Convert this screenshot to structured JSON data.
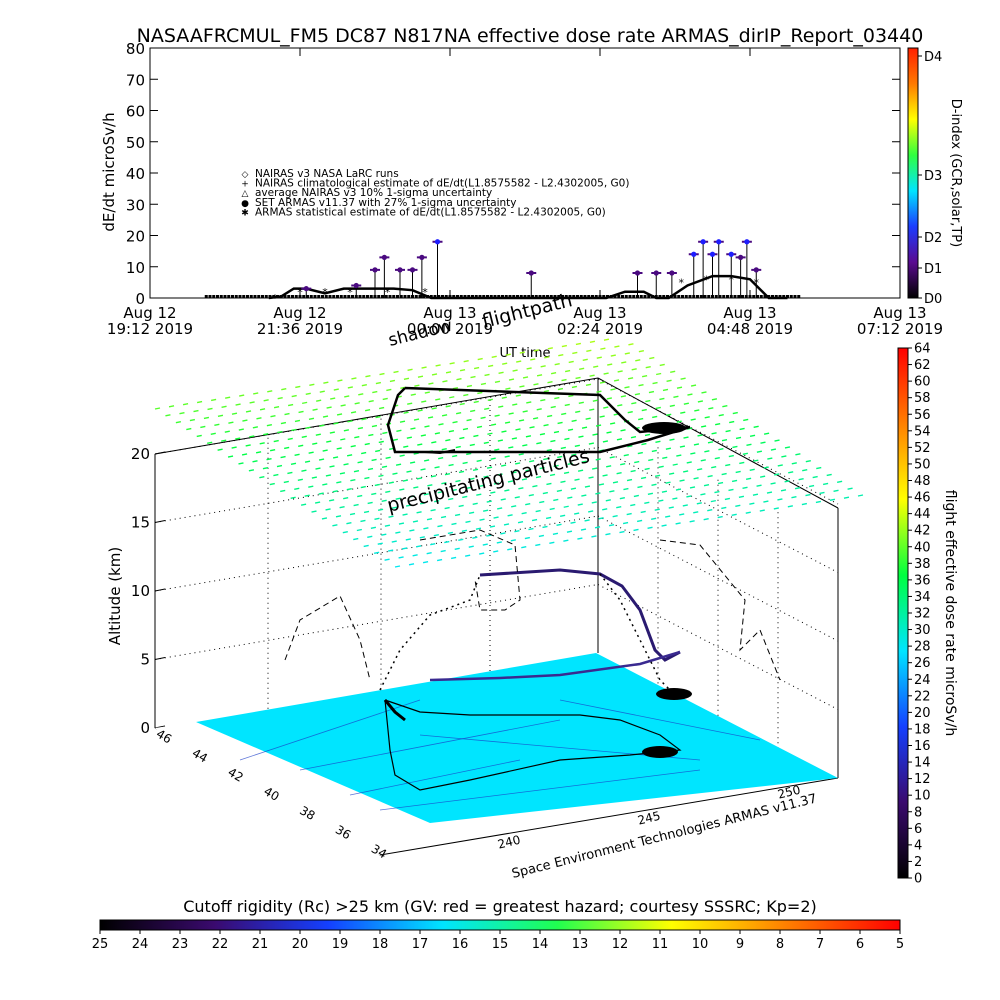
{
  "title": "NASAAFRCMUL_FM5 DC87 N817NA effective dose rate ARMAS_dirIP_Report_03440",
  "top_plot": {
    "ylabel": "dE/dt microSv/h",
    "xlabel": "UT time",
    "y_ticks": [
      "0",
      "10",
      "20",
      "30",
      "40",
      "50",
      "60",
      "70",
      "80"
    ],
    "x_ticks": [
      {
        "date": "Aug 12",
        "time": "19:12 2019"
      },
      {
        "date": "Aug 12",
        "time": "21:36 2019"
      },
      {
        "date": "Aug 13",
        "time": "00:00 2019"
      },
      {
        "date": "Aug 13",
        "time": "02:24 2019"
      },
      {
        "date": "Aug 13",
        "time": "04:48 2019"
      },
      {
        "date": "Aug 13",
        "time": "07:12 2019"
      }
    ],
    "legend": [
      {
        "symbol": "◇",
        "text": "NAIRAS v3 NASA LaRC runs"
      },
      {
        "symbol": "+",
        "text": "NAIRAS climatological estimate of dE/dt(L1.8575582 - L2.4302005, G0)"
      },
      {
        "symbol": "△",
        "text": "average NAIRAS v3 10% 1-sigma uncertainty"
      },
      {
        "symbol": "●",
        "text": "SET ARMAS v11.37 with 27% 1-sigma uncertainty"
      },
      {
        "symbol": "✱",
        "text": "ARMAS statistical estimate of dE/dt(L1.8575582 - L2.4302005, G0)"
      }
    ],
    "d_index_label": "D-index (GCR,solar,TP)",
    "d_index_ticks": [
      "D0",
      "D1",
      "D2",
      "D3",
      "D4"
    ]
  },
  "overlay_labels": {
    "flightpath": "flightpath",
    "shadow": "shadow",
    "precipitating": "precipitating particles"
  },
  "perspective_plot": {
    "zlabel": "Altitude (km)",
    "z_ticks": [
      "0",
      "5",
      "10",
      "15",
      "20"
    ],
    "lat_ticks": [
      "46",
      "44",
      "42",
      "40",
      "38",
      "36",
      "34"
    ],
    "lon_ticks": [
      "240",
      "245",
      "250"
    ],
    "credit": "Space Environment Technologies ARMAS v11.37"
  },
  "dose_colorbar": {
    "label": "flight effective dose rate microSv/h",
    "ticks": [
      "0",
      "2",
      "4",
      "6",
      "8",
      "10",
      "12",
      "14",
      "16",
      "18",
      "20",
      "22",
      "24",
      "26",
      "28",
      "30",
      "32",
      "34",
      "36",
      "38",
      "40",
      "42",
      "44",
      "46",
      "48",
      "50",
      "52",
      "54",
      "56",
      "58",
      "60",
      "62",
      "64"
    ]
  },
  "cutoff_colorbar": {
    "label": "Cutoff rigidity (Rc) >25 km (GV: red = greatest hazard; courtesy SSSRC; Kp=2)",
    "ticks": [
      "25",
      "24",
      "23",
      "22",
      "21",
      "20",
      "19",
      "18",
      "17",
      "16",
      "15",
      "14",
      "13",
      "12",
      "11",
      "10",
      "9",
      "8",
      "7",
      "6",
      "5"
    ]
  },
  "colors": {
    "ground": "#00e5ff",
    "arrow_stops": [
      "#000000",
      "#3a0a6e",
      "#1440ff",
      "#00e5ff",
      "#00ff40",
      "#ffff00",
      "#ff8000",
      "#ff0000"
    ],
    "d_index_stops": [
      "#000000",
      "#5a0a90",
      "#1c3cff",
      "#00e5ff",
      "#30ff40",
      "#ffff00",
      "#ff7a00",
      "#ff2000"
    ],
    "cutoff_stops": [
      "#000000",
      "#3a0a6e",
      "#1440ff",
      "#00e5ff",
      "#20ff50",
      "#ffff00",
      "#ff8000",
      "#ff0000"
    ]
  },
  "chart_data": {
    "type": "scatter",
    "title": "NASAAFRCMUL_FM5 DC87 N817NA effective dose rate ARMAS_dirIP_Report_03440",
    "xlabel": "UT time",
    "ylabel": "dE/dt microSv/h",
    "ylim": [
      0,
      80
    ],
    "x_unit": "hours after Aug 12 19:12 UT",
    "xlim": [
      0,
      12
    ],
    "series": [
      {
        "name": "NAIRAS climatological estimate of dE/dt(L1.8575582 - L2.4302005, G0)",
        "x": [
          1.9,
          2.1,
          2.3,
          2.5,
          2.8,
          3.1,
          3.4,
          3.6,
          3.9,
          4.2,
          4.5,
          4.8,
          5.1,
          5.4,
          5.7,
          6.0,
          6.3,
          6.6,
          7.0,
          7.3,
          7.6,
          7.9,
          8.1,
          8.3,
          8.6,
          9.0,
          9.3,
          9.6,
          9.9,
          10.2
        ],
        "values": [
          0,
          0.5,
          3,
          3,
          1.5,
          3,
          3,
          3,
          3,
          2.5,
          0,
          0,
          0,
          0,
          0,
          0,
          0,
          0,
          0,
          0,
          2,
          2,
          0,
          0,
          4,
          7,
          7,
          6,
          0,
          0
        ]
      },
      {
        "name": "SET ARMAS v11.37 with 27% 1-sigma uncertainty",
        "x": [
          2.5,
          3.3,
          3.6,
          3.75,
          4.0,
          4.2,
          4.35,
          4.6,
          6.1,
          7.8,
          8.1,
          8.35,
          8.7,
          8.85,
          9.0,
          9.1,
          9.3,
          9.45,
          9.55,
          9.7
        ],
        "values": [
          3,
          4,
          9,
          13,
          9,
          9,
          13,
          18,
          8,
          8,
          8,
          8,
          14,
          18,
          14,
          18,
          14,
          13,
          18,
          9
        ]
      },
      {
        "name": "ARMAS statistical estimate of dE/dt(L1.8575582 - L2.4302005, G0)",
        "x": [
          2.0,
          2.4,
          2.8,
          3.2,
          3.8,
          4.4,
          8.5,
          8.9,
          9.3,
          9.7
        ],
        "values": [
          0,
          2,
          2,
          2,
          2,
          2,
          5,
          6,
          6,
          5
        ]
      }
    ]
  }
}
